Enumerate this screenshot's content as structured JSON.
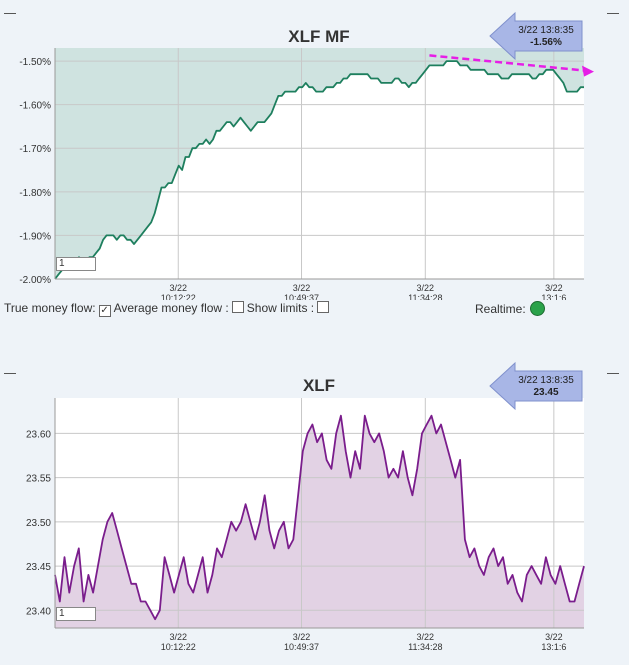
{
  "charts": {
    "mf": {
      "title": "XLF MF",
      "callout_line1": "3/22 13:8:35",
      "callout_line2": "-1.56%",
      "input_value": "1",
      "fill_color": "#cfe3e0",
      "line_color": "#1e7f5e",
      "arrow_color": "#e61ee6"
    },
    "price": {
      "title": "XLF",
      "callout_line1": "3/22 13:8:35",
      "callout_line2": "23.45",
      "input_value": "1",
      "fill_color": "#e2d2e4",
      "line_color": "#7a1d8c"
    }
  },
  "controls": {
    "true_mf_label": "True money flow:",
    "avg_mf_label": "Average money flow :",
    "show_limits_label": "Show limits :",
    "realtime_label": "Realtime:"
  },
  "chart_data": [
    {
      "type": "line",
      "title": "XLF MF",
      "ylim": [
        -2.0,
        -1.47
      ],
      "y_ticks": [
        "-1.50%",
        "-1.60%",
        "-1.70%",
        "-1.80%",
        "-1.90%",
        "-2.00%"
      ],
      "y_tick_values": [
        -1.5,
        -1.6,
        -1.7,
        -1.8,
        -1.9,
        -2.0
      ],
      "x_ticks": [
        {
          "date": "3/22",
          "time": "10:12:22"
        },
        {
          "date": "3/22",
          "time": "10:49:37"
        },
        {
          "date": "3/22",
          "time": "11:34:28"
        },
        {
          "date": "3/22",
          "time": "13:1:6"
        }
      ],
      "grid": true,
      "series": [
        {
          "values": [
            -2.0,
            -1.99,
            -1.98,
            -1.97,
            -1.97,
            -1.96,
            -1.96,
            -1.95,
            -1.96,
            -1.96,
            -1.95,
            -1.95,
            -1.94,
            -1.93,
            -1.91,
            -1.9,
            -1.9,
            -1.9,
            -1.91,
            -1.9,
            -1.9,
            -1.91,
            -1.91,
            -1.92,
            -1.91,
            -1.9,
            -1.89,
            -1.88,
            -1.87,
            -1.85,
            -1.82,
            -1.79,
            -1.79,
            -1.78,
            -1.78,
            -1.76,
            -1.74,
            -1.75,
            -1.72,
            -1.72,
            -1.7,
            -1.7,
            -1.69,
            -1.69,
            -1.68,
            -1.69,
            -1.68,
            -1.66,
            -1.66,
            -1.65,
            -1.64,
            -1.64,
            -1.65,
            -1.64,
            -1.63,
            -1.64,
            -1.65,
            -1.66,
            -1.65,
            -1.64,
            -1.64,
            -1.64,
            -1.63,
            -1.62,
            -1.6,
            -1.58,
            -1.58,
            -1.57,
            -1.57,
            -1.57,
            -1.57,
            -1.56,
            -1.56,
            -1.55,
            -1.56,
            -1.56,
            -1.57,
            -1.57,
            -1.57,
            -1.56,
            -1.56,
            -1.56,
            -1.55,
            -1.55,
            -1.54,
            -1.54,
            -1.53,
            -1.53,
            -1.53,
            -1.53,
            -1.53,
            -1.53,
            -1.54,
            -1.54,
            -1.54,
            -1.55,
            -1.55,
            -1.55,
            -1.55,
            -1.54,
            -1.54,
            -1.55,
            -1.55,
            -1.56,
            -1.55,
            -1.55,
            -1.54,
            -1.53,
            -1.52,
            -1.51,
            -1.51,
            -1.51,
            -1.51,
            -1.51,
            -1.5,
            -1.5,
            -1.5,
            -1.5,
            -1.51,
            -1.51,
            -1.51,
            -1.52,
            -1.52,
            -1.52,
            -1.52,
            -1.52,
            -1.53,
            -1.53,
            -1.53,
            -1.53,
            -1.54,
            -1.54,
            -1.54,
            -1.53,
            -1.53,
            -1.53,
            -1.53,
            -1.53,
            -1.53,
            -1.54,
            -1.54,
            -1.53,
            -1.53,
            -1.52,
            -1.52,
            -1.52,
            -1.53,
            -1.54,
            -1.55,
            -1.57,
            -1.57,
            -1.57,
            -1.57,
            -1.56,
            -1.56
          ]
        }
      ]
    },
    {
      "type": "line",
      "title": "XLF",
      "ylim": [
        23.38,
        23.64
      ],
      "y_ticks": [
        "23.60",
        "23.55",
        "23.50",
        "23.45",
        "23.40"
      ],
      "y_tick_values": [
        23.6,
        23.55,
        23.5,
        23.45,
        23.4
      ],
      "x_ticks": [
        {
          "date": "3/22",
          "time": "10:12:22"
        },
        {
          "date": "3/22",
          "time": "10:49:37"
        },
        {
          "date": "3/22",
          "time": "11:34:28"
        },
        {
          "date": "3/22",
          "time": "13:1:6"
        }
      ],
      "grid": true,
      "series": [
        {
          "values": [
            23.44,
            23.41,
            23.46,
            23.42,
            23.45,
            23.47,
            23.41,
            23.44,
            23.42,
            23.45,
            23.48,
            23.5,
            23.51,
            23.49,
            23.47,
            23.45,
            23.43,
            23.43,
            23.41,
            23.41,
            23.4,
            23.39,
            23.4,
            23.46,
            23.44,
            23.42,
            23.44,
            23.46,
            23.43,
            23.42,
            23.44,
            23.46,
            23.42,
            23.44,
            23.47,
            23.46,
            23.48,
            23.5,
            23.49,
            23.5,
            23.52,
            23.5,
            23.48,
            23.5,
            23.53,
            23.49,
            23.47,
            23.49,
            23.5,
            23.47,
            23.48,
            23.53,
            23.58,
            23.6,
            23.61,
            23.59,
            23.6,
            23.57,
            23.56,
            23.6,
            23.62,
            23.58,
            23.55,
            23.58,
            23.56,
            23.62,
            23.6,
            23.59,
            23.6,
            23.58,
            23.55,
            23.56,
            23.55,
            23.58,
            23.55,
            23.53,
            23.56,
            23.6,
            23.61,
            23.62,
            23.6,
            23.61,
            23.59,
            23.57,
            23.55,
            23.57,
            23.48,
            23.46,
            23.47,
            23.45,
            23.44,
            23.46,
            23.47,
            23.45,
            23.46,
            23.43,
            23.44,
            23.42,
            23.41,
            23.44,
            23.45,
            23.44,
            23.43,
            23.46,
            23.44,
            23.43,
            23.45,
            23.43,
            23.41,
            23.41,
            23.43,
            23.45
          ]
        }
      ]
    }
  ]
}
